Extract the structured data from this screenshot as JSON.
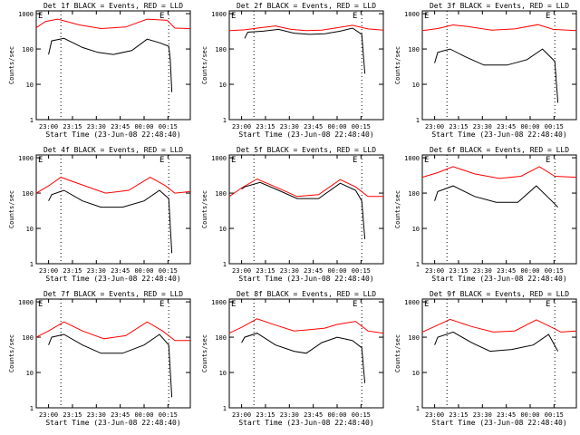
{
  "chart_data": [
    {
      "type": "line",
      "title": "Det 1f BLACK = Events, RED = LLD",
      "xlabel": "Start Time (23-Jun-08 22:48:40)",
      "ylabel": "Counts/sec",
      "x_tick_labels": [
        "23:00",
        "23:15",
        "23:30",
        "23:45",
        "00:00",
        "00:15"
      ],
      "y_tick_labels": [
        "1",
        "10",
        "100",
        "1000"
      ],
      "ylim": [
        1,
        1200
      ],
      "yscale": "log",
      "corner_labels": [
        "E",
        "E"
      ],
      "series": [
        {
          "color": "#ff0000",
          "x": [
            0,
            0.06,
            0.14,
            0.28,
            0.42,
            0.58,
            0.72,
            0.85,
            0.9,
            1
          ],
          "y": [
            400,
            600,
            700,
            480,
            380,
            420,
            700,
            650,
            390,
            380
          ]
        },
        {
          "color": "#000000",
          "x": [
            0.08,
            0.1,
            0.18,
            0.3,
            0.4,
            0.5,
            0.62,
            0.72,
            0.8,
            0.86,
            0.87,
            0.88
          ],
          "y": [
            70,
            170,
            200,
            110,
            80,
            70,
            90,
            190,
            150,
            120,
            50,
            6
          ]
        }
      ]
    },
    {
      "type": "line",
      "title": "Det 2f BLACK = Events, RED = LLD",
      "xlabel": "Start Time (23-Jun-08 22:48:40)",
      "ylabel": "Counts/sec",
      "x_tick_labels": [
        "23:00",
        "23:15",
        "23:30",
        "23:45",
        "00:00",
        "00:15"
      ],
      "y_tick_labels": [
        "1",
        "10",
        "100",
        "1000"
      ],
      "ylim": [
        1,
        1200
      ],
      "yscale": "log",
      "corner_labels": [
        "E",
        "E"
      ],
      "series": [
        {
          "color": "#ff0000",
          "x": [
            0,
            0.1,
            0.2,
            0.3,
            0.4,
            0.5,
            0.6,
            0.7,
            0.8,
            0.9,
            1
          ],
          "y": [
            330,
            350,
            400,
            450,
            360,
            330,
            340,
            400,
            470,
            370,
            340
          ]
        },
        {
          "color": "#000000",
          "x": [
            0.1,
            0.12,
            0.22,
            0.32,
            0.42,
            0.52,
            0.62,
            0.72,
            0.8,
            0.86,
            0.88
          ],
          "y": [
            200,
            300,
            320,
            360,
            280,
            260,
            270,
            320,
            390,
            260,
            20
          ]
        }
      ]
    },
    {
      "type": "line",
      "title": "Det 3f BLACK = Events, RED = LLD",
      "xlabel": "Start Time (23-Jun-08 22:48:40)",
      "ylabel": "Counts/sec",
      "x_tick_labels": [
        "23:00",
        "23:15",
        "23:30",
        "23:45",
        "00:00",
        "00:15"
      ],
      "y_tick_labels": [
        "1",
        "10",
        "100",
        "1000"
      ],
      "ylim": [
        1,
        1200
      ],
      "yscale": "log",
      "corner_labels": [
        "E",
        "E"
      ],
      "series": [
        {
          "color": "#ff0000",
          "x": [
            0,
            0.1,
            0.2,
            0.3,
            0.45,
            0.6,
            0.75,
            0.85,
            1
          ],
          "y": [
            330,
            380,
            480,
            430,
            340,
            370,
            490,
            360,
            330
          ]
        },
        {
          "color": "#000000",
          "x": [
            0.08,
            0.1,
            0.18,
            0.28,
            0.4,
            0.55,
            0.68,
            0.78,
            0.86,
            0.88
          ],
          "y": [
            40,
            80,
            100,
            60,
            35,
            35,
            50,
            100,
            45,
            3
          ]
        }
      ]
    },
    {
      "type": "line",
      "title": "Det 4f BLACK = Events, RED = LLD",
      "xlabel": "Start Time (23-Jun-08 22:48:40)",
      "ylabel": "Counts/sec",
      "x_tick_labels": [
        "23:00",
        "23:15",
        "23:30",
        "23:45",
        "00:00",
        "00:15"
      ],
      "y_tick_labels": [
        "1",
        "10",
        "100",
        "1000"
      ],
      "ylim": [
        1,
        1200
      ],
      "yscale": "log",
      "corner_labels": [
        "E",
        "E"
      ],
      "series": [
        {
          "color": "#ff0000",
          "x": [
            0,
            0.08,
            0.16,
            0.3,
            0.45,
            0.6,
            0.74,
            0.84,
            0.9,
            1
          ],
          "y": [
            100,
            160,
            280,
            170,
            100,
            120,
            280,
            160,
            100,
            110
          ]
        },
        {
          "color": "#000000",
          "x": [
            0.08,
            0.1,
            0.18,
            0.3,
            0.42,
            0.56,
            0.7,
            0.8,
            0.86,
            0.88
          ],
          "y": [
            60,
            90,
            120,
            60,
            40,
            40,
            60,
            120,
            70,
            2
          ]
        }
      ]
    },
    {
      "type": "line",
      "title": "Det 5f BLACK = Events, RED = LLD",
      "xlabel": "Start Time (23-Jun-08 22:48:40)",
      "ylabel": "Counts/sec",
      "x_tick_labels": [
        "23:00",
        "23:15",
        "23:30",
        "23:45",
        "00:00",
        "00:15"
      ],
      "y_tick_labels": [
        "1",
        "10",
        "100",
        "1000"
      ],
      "ylim": [
        1,
        1200
      ],
      "yscale": "log",
      "corner_labels": [
        "E",
        "E"
      ],
      "series": [
        {
          "color": "#ff0000",
          "x": [
            0,
            0.08,
            0.18,
            0.3,
            0.44,
            0.58,
            0.72,
            0.82,
            0.9,
            1
          ],
          "y": [
            80,
            140,
            250,
            150,
            80,
            90,
            240,
            150,
            80,
            80
          ]
        },
        {
          "color": "#000000",
          "x": [
            0.08,
            0.1,
            0.2,
            0.32,
            0.44,
            0.58,
            0.72,
            0.82,
            0.86,
            0.88
          ],
          "y": [
            130,
            150,
            200,
            120,
            70,
            70,
            190,
            120,
            60,
            5
          ]
        }
      ]
    },
    {
      "type": "line",
      "title": "Det 6f BLACK = Events, RED = LLD",
      "xlabel": "Start Time (23-Jun-08 22:48:40)",
      "ylabel": "Counts/sec",
      "x_tick_labels": [
        "23:00",
        "23:15",
        "23:30",
        "23:45",
        "00:00",
        "00:15"
      ],
      "y_tick_labels": [
        "1",
        "10",
        "100",
        "1000"
      ],
      "ylim": [
        1,
        1200
      ],
      "yscale": "log",
      "corner_labels": [
        "E",
        "E"
      ],
      "series": [
        {
          "color": "#ff0000",
          "x": [
            0,
            0.1,
            0.2,
            0.34,
            0.5,
            0.64,
            0.76,
            0.86,
            1
          ],
          "y": [
            280,
            380,
            560,
            350,
            260,
            300,
            560,
            300,
            280
          ]
        },
        {
          "color": "#000000",
          "x": [
            0.08,
            0.1,
            0.2,
            0.34,
            0.48,
            0.62,
            0.74,
            0.84,
            0.88
          ],
          "y": [
            60,
            110,
            160,
            80,
            55,
            55,
            160,
            60,
            40
          ]
        }
      ]
    },
    {
      "type": "line",
      "title": "Det 7f BLACK = Events, RED = LLD",
      "xlabel": "Start Time (23-Jun-08 22:48:40)",
      "ylabel": "Counts/sec",
      "x_tick_labels": [
        "23:00",
        "23:15",
        "23:30",
        "23:45",
        "00:00",
        "00:15"
      ],
      "y_tick_labels": [
        "1",
        "10",
        "100",
        "1000"
      ],
      "ylim": [
        1,
        1200
      ],
      "yscale": "log",
      "corner_labels": [
        "E",
        "E"
      ],
      "series": [
        {
          "color": "#ff0000",
          "x": [
            0,
            0.08,
            0.18,
            0.3,
            0.44,
            0.58,
            0.72,
            0.82,
            0.9,
            1
          ],
          "y": [
            100,
            150,
            270,
            150,
            90,
            110,
            270,
            150,
            80,
            80
          ]
        },
        {
          "color": "#000000",
          "x": [
            0.08,
            0.1,
            0.18,
            0.3,
            0.42,
            0.56,
            0.7,
            0.8,
            0.86,
            0.88
          ],
          "y": [
            60,
            100,
            120,
            60,
            35,
            35,
            60,
            120,
            60,
            2
          ]
        }
      ]
    },
    {
      "type": "line",
      "title": "Det 8f BLACK = Events, RED = LLD",
      "xlabel": "Start Time (23-Jun-08 22:48:40)",
      "ylabel": "Counts/sec",
      "x_tick_labels": [
        "23:00",
        "23:15",
        "23:30",
        "23:45",
        "00:00",
        "00:15"
      ],
      "y_tick_labels": [
        "1",
        "10",
        "100",
        "1000"
      ],
      "ylim": [
        1,
        1200
      ],
      "yscale": "log",
      "corner_labels": [
        "E",
        "E"
      ],
      "series": [
        {
          "color": "#ff0000",
          "x": [
            0,
            0.08,
            0.18,
            0.3,
            0.42,
            0.5,
            0.62,
            0.7,
            0.82,
            0.9,
            1
          ],
          "y": [
            130,
            190,
            330,
            220,
            150,
            160,
            180,
            230,
            280,
            150,
            130
          ]
        },
        {
          "color": "#000000",
          "x": [
            0.08,
            0.1,
            0.18,
            0.3,
            0.42,
            0.5,
            0.6,
            0.7,
            0.8,
            0.86,
            0.88
          ],
          "y": [
            70,
            100,
            130,
            60,
            40,
            35,
            70,
            100,
            80,
            50,
            5
          ]
        }
      ]
    },
    {
      "type": "line",
      "title": "Det 9f BLACK = Events, RED = LLD",
      "xlabel": "Start Time (23-Jun-08 22:48:40)",
      "ylabel": "Counts/sec",
      "x_tick_labels": [
        "23:00",
        "23:15",
        "23:30",
        "23:45",
        "00:00",
        "00:15"
      ],
      "y_tick_labels": [
        "1",
        "10",
        "100",
        "1000"
      ],
      "ylim": [
        1,
        1200
      ],
      "yscale": "log",
      "corner_labels": [
        "E",
        "E"
      ],
      "series": [
        {
          "color": "#ff0000",
          "x": [
            0,
            0.08,
            0.18,
            0.32,
            0.46,
            0.6,
            0.74,
            0.84,
            0.9,
            1
          ],
          "y": [
            140,
            200,
            320,
            200,
            140,
            150,
            310,
            190,
            140,
            150
          ]
        },
        {
          "color": "#000000",
          "x": [
            0.08,
            0.1,
            0.2,
            0.32,
            0.44,
            0.58,
            0.72,
            0.82,
            0.88
          ],
          "y": [
            60,
            100,
            140,
            70,
            40,
            45,
            60,
            120,
            40
          ]
        }
      ]
    }
  ]
}
